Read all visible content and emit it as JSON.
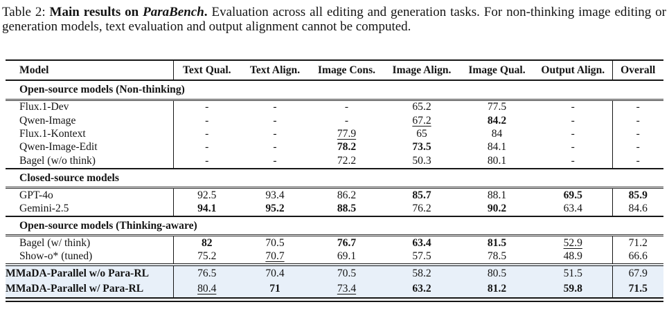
{
  "caption": {
    "label": "Table 2: ",
    "title_bold": "Main results on ",
    "title_italic": "ParaBench",
    "title_period": ". ",
    "body": "Evaluation across all editing and generation tasks. For non-thinking image editing or generation models, text evaluation and output alignment cannot be computed."
  },
  "table": {
    "highlight_color": "#e8f0f9",
    "columns": [
      "Model",
      "Text Qual.",
      "Text Align.",
      "Image Cons.",
      "Image Align.",
      "Image Qual.",
      "Output Align.",
      "Overall"
    ],
    "sections": [
      {
        "header": "Open-source models (Non-thinking)",
        "rows": [
          {
            "model": "Flux.1-Dev",
            "model_style": "n",
            "cells": [
              "-",
              "-",
              "-",
              "65.2",
              "77.5",
              "-",
              "-"
            ],
            "styles": [
              "n",
              "n",
              "n",
              "n",
              "n",
              "n",
              "n"
            ]
          },
          {
            "model": "Qwen-Image",
            "model_style": "n",
            "cells": [
              "-",
              "-",
              "-",
              "67.2",
              "84.2",
              "-",
              "-"
            ],
            "styles": [
              "n",
              "n",
              "n",
              "u",
              "b",
              "n",
              "n"
            ]
          },
          {
            "model": "Flux.1-Kontext",
            "model_style": "n",
            "cells": [
              "-",
              "-",
              "77.9",
              "65",
              "84",
              "-",
              "-"
            ],
            "styles": [
              "n",
              "n",
              "u",
              "n",
              "n",
              "n",
              "n"
            ]
          },
          {
            "model": "Qwen-Image-Edit",
            "model_style": "n",
            "cells": [
              "-",
              "-",
              "78.2",
              "73.5",
              "84.1",
              "-",
              "-"
            ],
            "styles": [
              "n",
              "n",
              "b",
              "b",
              "n",
              "n",
              "n"
            ]
          },
          {
            "model": "Bagel (w/o think)",
            "model_style": "n",
            "cells": [
              "-",
              "-",
              "72.2",
              "50.3",
              "80.1",
              "-",
              "-"
            ],
            "styles": [
              "n",
              "n",
              "n",
              "n",
              "n",
              "n",
              "n"
            ]
          }
        ]
      },
      {
        "header": "Closed-source models",
        "rows": [
          {
            "model": "GPT-4o",
            "model_style": "n",
            "cells": [
              "92.5",
              "93.4",
              "86.2",
              "85.7",
              "88.1",
              "69.5",
              "85.9"
            ],
            "styles": [
              "n",
              "n",
              "n",
              "b",
              "n",
              "b",
              "b"
            ]
          },
          {
            "model": "Gemini-2.5",
            "model_style": "n",
            "cells": [
              "94.1",
              "95.2",
              "88.5",
              "76.2",
              "90.2",
              "63.4",
              "84.6"
            ],
            "styles": [
              "b",
              "b",
              "b",
              "n",
              "b",
              "n",
              "n"
            ]
          }
        ]
      },
      {
        "header": "Open-source models (Thinking-aware)",
        "rows": [
          {
            "model": "Bagel (w/ think)",
            "model_style": "n",
            "cells": [
              "82",
              "70.5",
              "76.7",
              "63.4",
              "81.5",
              "52.9",
              "71.2"
            ],
            "styles": [
              "b",
              "n",
              "b",
              "b",
              "b",
              "u",
              "n"
            ]
          },
          {
            "model": "Show-o* (tuned)",
            "model_style": "n",
            "cells": [
              "75.2",
              "70.7",
              "69.1",
              "57.5",
              "78.5",
              "48.9",
              "66.6"
            ],
            "styles": [
              "n",
              "u",
              "n",
              "n",
              "n",
              "n",
              "n"
            ]
          }
        ]
      },
      {
        "rows": [
          {
            "model": "MMaDA-Parallel w/o Para-RL",
            "model_style": "b",
            "cells": [
              "76.5",
              "70.4",
              "70.5",
              "58.2",
              "80.5",
              "51.5",
              "67.9"
            ],
            "styles": [
              "n",
              "n",
              "n",
              "n",
              "n",
              "n",
              "n"
            ]
          },
          {
            "model": "MMaDA-Parallel w/ Para-RL",
            "model_style": "b",
            "cells": [
              "80.4",
              "71",
              "73.4",
              "63.2",
              "81.2",
              "59.8",
              "71.5"
            ],
            "styles": [
              "u",
              "b",
              "u",
              "b",
              "b",
              "b",
              "b"
            ]
          }
        ]
      }
    ]
  }
}
